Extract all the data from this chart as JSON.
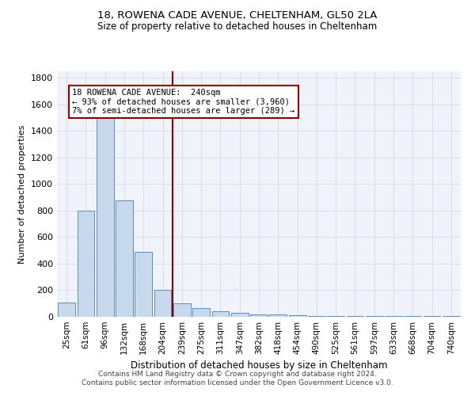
{
  "title_line1": "18, ROWENA CADE AVENUE, CHELTENHAM, GL50 2LA",
  "title_line2": "Size of property relative to detached houses in Cheltenham",
  "xlabel": "Distribution of detached houses by size in Cheltenham",
  "ylabel": "Number of detached properties",
  "categories": [
    "25sqm",
    "61sqm",
    "96sqm",
    "132sqm",
    "168sqm",
    "204sqm",
    "239sqm",
    "275sqm",
    "311sqm",
    "347sqm",
    "382sqm",
    "418sqm",
    "454sqm",
    "490sqm",
    "525sqm",
    "561sqm",
    "597sqm",
    "633sqm",
    "668sqm",
    "704sqm",
    "740sqm"
  ],
  "values": [
    110,
    800,
    1500,
    880,
    490,
    200,
    100,
    65,
    40,
    30,
    20,
    20,
    10,
    8,
    5,
    5,
    4,
    3,
    3,
    3,
    3
  ],
  "bar_color": "#c9d9ed",
  "bar_edge_color": "#5b8db8",
  "vline_x_index": 6,
  "vline_color": "#8b0000",
  "annotation_line1": "18 ROWENA CADE AVENUE:  240sqm",
  "annotation_line2": "← 93% of detached houses are smaller (3,960)",
  "annotation_line3": "7% of semi-detached houses are larger (289) →",
  "annotation_box_color": "#ffffff",
  "annotation_box_edge": "#8b0000",
  "ylim": [
    0,
    1850
  ],
  "yticks": [
    0,
    200,
    400,
    600,
    800,
    1000,
    1200,
    1400,
    1600,
    1800
  ],
  "bg_color": "#f0f4fa",
  "grid_color": "#d0d8e8",
  "footer_line1": "Contains HM Land Registry data © Crown copyright and database right 2024.",
  "footer_line2": "Contains public sector information licensed under the Open Government Licence v3.0."
}
